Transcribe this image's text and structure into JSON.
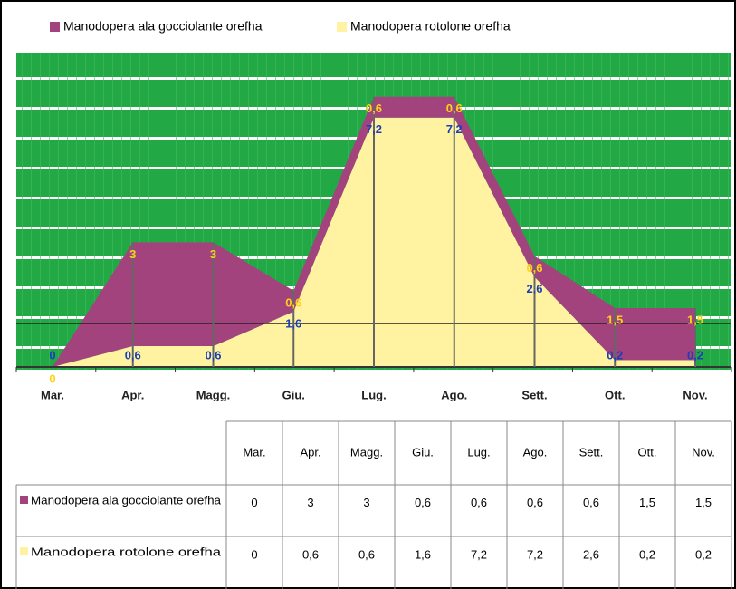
{
  "chart_data": {
    "type": "stacked_area",
    "categories": [
      "Mar.",
      "Apr.",
      "Magg.",
      "Giu.",
      "Lug.",
      "Ago.",
      "Sett.",
      "Ott.",
      "Nov."
    ],
    "series": [
      {
        "name": "Manodopera rotolone orefha",
        "color": "#fff2a0",
        "label_color": "#1a3fb8",
        "values": [
          0,
          0.6,
          0.6,
          1.6,
          7.2,
          7.2,
          2.6,
          0.2,
          0.2
        ],
        "value_labels": [
          "0",
          "0,6",
          "0,6",
          "1,6",
          "7,2",
          "7,2",
          "2,6",
          "0,2",
          "0,2"
        ]
      },
      {
        "name": "Manodopera ala gocciolante orefha",
        "color": "#a3437e",
        "label_color": "#ffd21a",
        "values": [
          0,
          3,
          3,
          0.6,
          0.6,
          0.6,
          0.6,
          1.5,
          1.5
        ],
        "value_labels": [
          "0",
          "3",
          "3",
          "0,6",
          "0,6",
          "0,6",
          "0,6",
          "1,5",
          "1,5"
        ]
      }
    ],
    "ylim": [
      0,
      8.5
    ],
    "background": "#22a845"
  }
}
